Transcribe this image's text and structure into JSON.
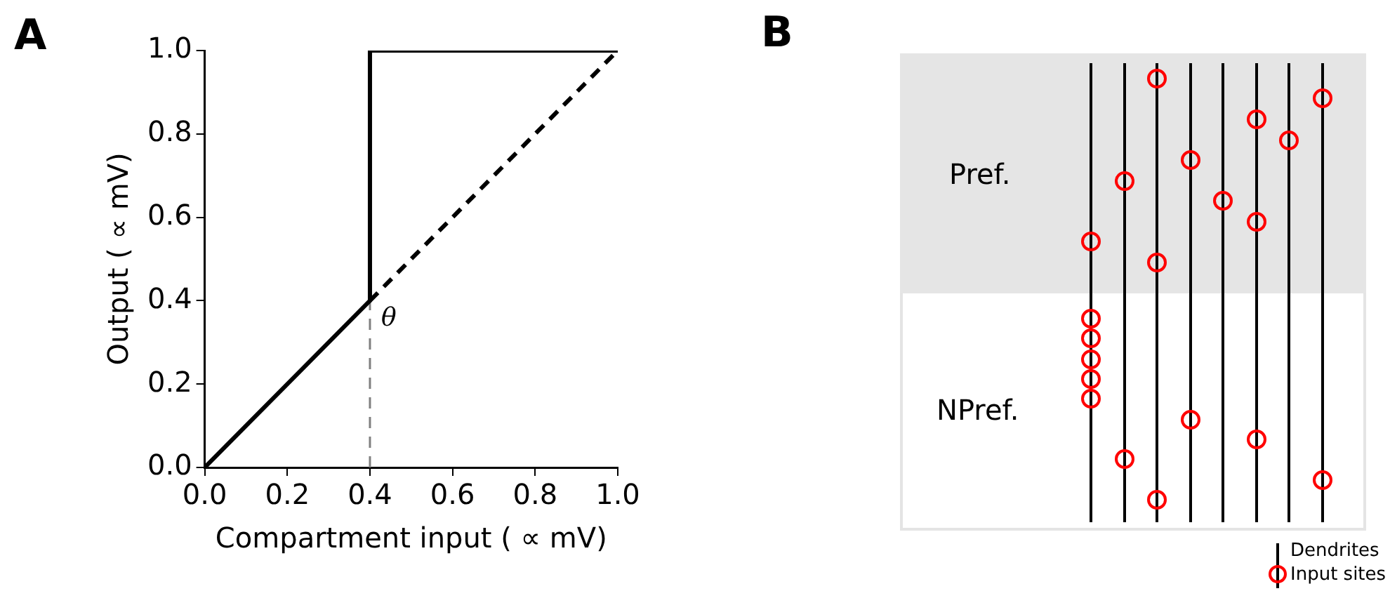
{
  "chart_data": [
    {
      "type": "line",
      "xlabel": "Compartment input ( ∝ mV)",
      "ylabel": "Output ( ∝ mV)",
      "annotations": [
        "A",
        {
          "text": "θ",
          "x": 0.4,
          "y": 0.4
        }
      ],
      "xlim": [
        0,
        1
      ],
      "ylim": [
        0,
        1
      ],
      "xticks": [
        {
          "value": 0,
          "label": "0.0"
        },
        {
          "value": 0.2,
          "label": "0.2"
        },
        {
          "value": 0.4,
          "label": "0.4"
        },
        {
          "value": 0.6,
          "label": "0.6"
        },
        {
          "value": 0.8,
          "label": "0.8"
        },
        {
          "value": 1,
          "label": "1.0"
        }
      ],
      "yticks": [
        {
          "value": 0,
          "label": "0.0"
        },
        {
          "value": 0.2,
          "label": "0.2"
        },
        {
          "value": 0.4,
          "label": "0.4"
        },
        {
          "value": 0.6,
          "label": "0.6"
        },
        {
          "value": 0.8,
          "label": "0.8"
        },
        {
          "value": 1,
          "label": "1.0"
        }
      ],
      "grid": false,
      "legend": false,
      "marker": "none",
      "series": [
        {
          "color": "#000000",
          "x": [
            0,
            0.4,
            0.4,
            1
          ],
          "values": [
            0,
            0.4,
            1,
            1
          ],
          "line_style": "solid"
        },
        {
          "color": "#000000",
          "x": [
            0.4,
            1
          ],
          "values": [
            0.4,
            1
          ],
          "line_style": "dashed"
        },
        {
          "color": "#808080",
          "x": [
            0.4,
            0.4
          ],
          "values": [
            0,
            0.4
          ],
          "line_style": "dashed"
        }
      ]
    },
    {
      "type": "other",
      "annotations": [
        "B",
        "Pref.",
        "NPref.",
        "Dendrites",
        "Input sites"
      ]
    }
  ]
}
